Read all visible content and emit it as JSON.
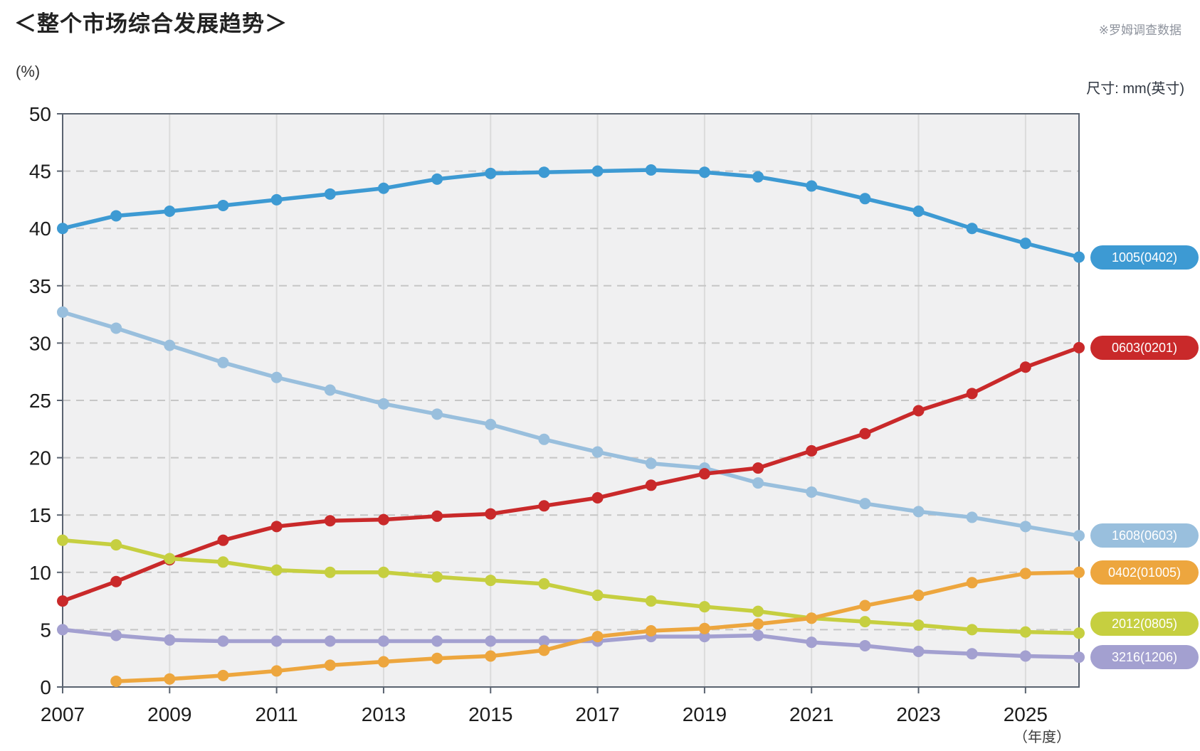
{
  "page": {
    "title": "＜整个市场综合发展趋势＞",
    "source_note": "※罗姆调查数据",
    "size_unit_note": "尺寸: mm(英寸)",
    "y_axis_unit": "(%)",
    "x_axis_unit": "（年度）"
  },
  "colors": {
    "plot_background": "#f0f0f1",
    "plot_border": "#5a6370",
    "h_gridline": "#c6c6c6",
    "v_gridline": "#dbdbdb",
    "tick_label": "#1c1c1c",
    "page_background": "#ffffff"
  },
  "chart_data": {
    "type": "line",
    "title": "＜整个市场综合发展趋势＞",
    "xlabel": "（年度）",
    "ylabel": "(%)",
    "ylim": [
      0,
      50
    ],
    "y_ticks": [
      0,
      5,
      10,
      15,
      20,
      25,
      30,
      35,
      40,
      45,
      50
    ],
    "x": [
      2007,
      2008,
      2009,
      2010,
      2011,
      2012,
      2013,
      2014,
      2015,
      2016,
      2017,
      2018,
      2019,
      2020,
      2021,
      2022,
      2023,
      2024,
      2025,
      2026
    ],
    "x_tick_years": [
      2007,
      2009,
      2011,
      2013,
      2015,
      2017,
      2019,
      2021,
      2023,
      2025
    ],
    "grid": {
      "horizontal": "dashed",
      "vertical": "solid_at_odd_years"
    },
    "legend_position": "right",
    "series": [
      {
        "name": "1005(0402)",
        "color": "#3d9ad3",
        "values": [
          40.0,
          41.1,
          41.5,
          42.0,
          42.5,
          43.0,
          43.5,
          44.3,
          44.8,
          44.9,
          45.0,
          45.1,
          44.9,
          44.5,
          43.7,
          42.6,
          41.5,
          40.0,
          38.7,
          37.5
        ]
      },
      {
        "name": "0603(0201)",
        "color": "#c9292a",
        "values": [
          7.5,
          9.2,
          11.1,
          12.8,
          14.0,
          14.5,
          14.6,
          14.9,
          15.1,
          15.8,
          16.5,
          17.6,
          18.6,
          19.1,
          20.6,
          22.1,
          24.1,
          25.6,
          27.9,
          29.6
        ]
      },
      {
        "name": "1608(0603)",
        "color": "#99bfdd",
        "values": [
          32.7,
          31.3,
          29.8,
          28.3,
          27.0,
          25.9,
          24.7,
          23.8,
          22.9,
          21.6,
          20.5,
          19.5,
          19.1,
          17.8,
          17.0,
          16.0,
          15.3,
          14.8,
          14.0,
          13.2
        ]
      },
      {
        "name": "0402(01005)",
        "color": "#eda63e",
        "values": [
          null,
          0.5,
          0.7,
          1.0,
          1.4,
          1.9,
          2.2,
          2.5,
          2.7,
          3.2,
          4.4,
          4.9,
          5.1,
          5.5,
          6.0,
          7.1,
          8.0,
          9.1,
          9.9,
          10.0
        ]
      },
      {
        "name": "2012(0805)",
        "color": "#c6cf40",
        "values": [
          12.8,
          12.4,
          11.2,
          10.9,
          10.2,
          10.0,
          10.0,
          9.6,
          9.3,
          9.0,
          8.0,
          7.5,
          7.0,
          6.6,
          6.0,
          5.7,
          5.4,
          5.0,
          4.8,
          4.7
        ]
      },
      {
        "name": "3216(1206)",
        "color": "#a3a0d0",
        "values": [
          5.0,
          4.5,
          4.1,
          4.0,
          4.0,
          4.0,
          4.0,
          4.0,
          4.0,
          4.0,
          4.0,
          4.4,
          4.4,
          4.5,
          3.9,
          3.6,
          3.1,
          2.9,
          2.7,
          2.6
        ]
      }
    ]
  }
}
